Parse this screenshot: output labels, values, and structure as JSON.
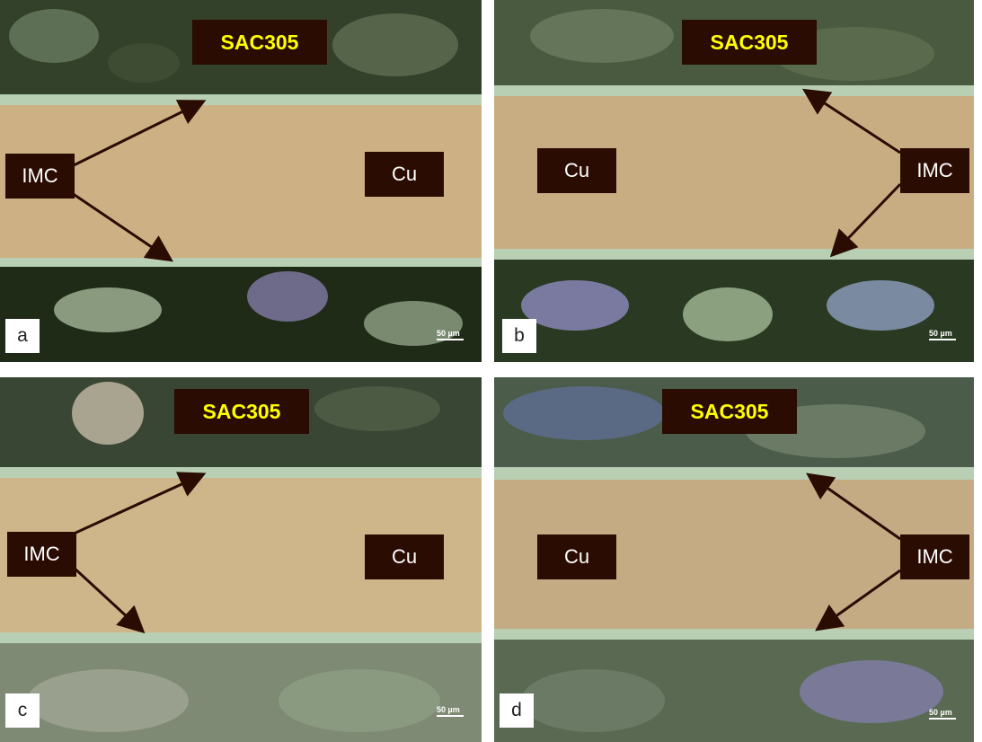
{
  "panels": [
    {
      "letter": "a",
      "solder": "SAC305",
      "imc": "IMC",
      "cu": "Cu",
      "scale": "50 µm"
    },
    {
      "letter": "b",
      "solder": "SAC305",
      "imc": "IMC",
      "cu": "Cu",
      "scale": "50 µm"
    },
    {
      "letter": "c",
      "solder": "SAC305",
      "imc": "IMC",
      "cu": "Cu",
      "scale": "50 µm"
    },
    {
      "letter": "d",
      "solder": "SAC305",
      "imc": "IMC",
      "cu": "Cu",
      "scale": "50 µm"
    }
  ],
  "colors": {
    "copper": "#cdb184",
    "solder_dark": "#1f2b17",
    "imc": "#b8cfb4",
    "label_bg": "#2a0c02",
    "label_text_sac": "#ffff00"
  }
}
